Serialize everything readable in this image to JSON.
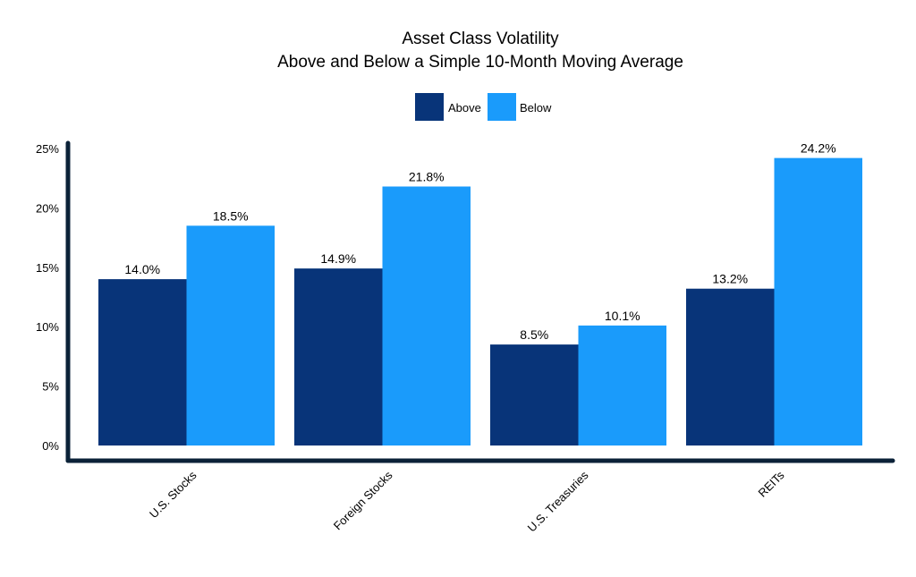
{
  "chart_data": {
    "type": "bar",
    "title": "Asset Class Volatility",
    "subtitle": "Above and Below a Simple 10-Month Moving Average",
    "categories": [
      "U.S. Stocks",
      "Foreign Stocks",
      "U.S. Treasuries",
      "REITs"
    ],
    "series": [
      {
        "name": "Above",
        "values": [
          14.0,
          14.9,
          8.5,
          13.2
        ],
        "color": "#083479"
      },
      {
        "name": "Below",
        "values": [
          18.5,
          21.8,
          10.1,
          24.2
        ],
        "color": "#1a9bfb"
      }
    ],
    "data_labels": [
      [
        "14.0%",
        "14.9%",
        "8.5%",
        "13.2%"
      ],
      [
        "18.5%",
        "21.8%",
        "10.1%",
        "24.2%"
      ]
    ],
    "ylim": [
      0,
      25
    ],
    "yticks": [
      0,
      5,
      10,
      15,
      20,
      25
    ],
    "ytick_labels": [
      "0%",
      "5%",
      "10%",
      "15%",
      "20%",
      "25%"
    ],
    "xlabel": "",
    "ylabel": "",
    "legend_position": "top-center",
    "grid": false,
    "axis_color": "#0b2238"
  }
}
